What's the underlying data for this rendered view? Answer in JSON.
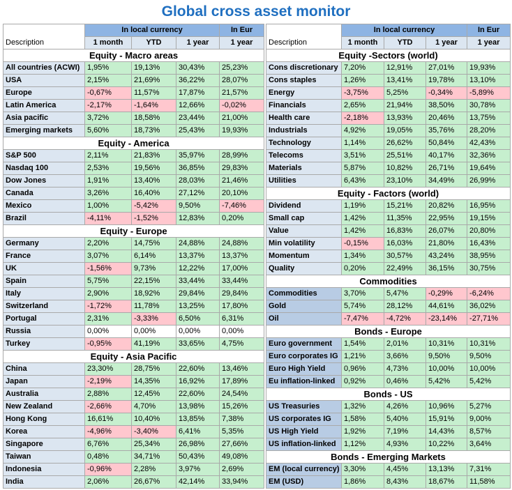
{
  "title": "Global cross asset monitor",
  "header": {
    "description": "Description",
    "local_currency": "In local currency",
    "in_eur": "In Eur",
    "col_1m": "1 month",
    "col_ytd": "YTD",
    "col_1y": "1 year",
    "col_1y_eur": "1 year"
  },
  "left_sections": [
    {
      "title": "Equity - Macro areas",
      "rows": [
        {
          "label": "All countries (ACWI)",
          "values": [
            "1,95%",
            "19,13%",
            "30,43%",
            "25,23%"
          ]
        },
        {
          "label": "USA",
          "values": [
            "2,15%",
            "21,69%",
            "36,22%",
            "28,07%"
          ]
        },
        {
          "label": "Europe",
          "values": [
            "-0,67%",
            "11,57%",
            "17,87%",
            "21,57%"
          ]
        },
        {
          "label": "Latin America",
          "values": [
            "-2,17%",
            "-1,64%",
            "12,66%",
            "-0,02%"
          ]
        },
        {
          "label": "Asia pacific",
          "values": [
            "3,72%",
            "18,58%",
            "23,44%",
            "21,00%"
          ]
        },
        {
          "label": "Emerging markets",
          "values": [
            "5,60%",
            "18,73%",
            "25,43%",
            "19,93%"
          ]
        }
      ]
    },
    {
      "title": "Equity - America",
      "rows": [
        {
          "label": "S&P 500",
          "values": [
            "2,11%",
            "21,83%",
            "35,97%",
            "28,99%"
          ]
        },
        {
          "label": "Nasdaq 100",
          "values": [
            "2,53%",
            "19,56%",
            "36,85%",
            "29,83%"
          ]
        },
        {
          "label": "Dow Jones",
          "values": [
            "1,91%",
            "13,40%",
            "28,03%",
            "21,46%"
          ]
        },
        {
          "label": "Canada",
          "values": [
            "3,26%",
            "16,40%",
            "27,12%",
            "20,10%"
          ]
        },
        {
          "label": "Mexico",
          "values": [
            "1,00%",
            "-5,42%",
            "9,50%",
            "-7,46%"
          ]
        },
        {
          "label": "Brazil",
          "values": [
            "-4,11%",
            "-1,52%",
            "12,83%",
            "0,20%"
          ]
        }
      ]
    },
    {
      "title": "Equity - Europe",
      "rows": [
        {
          "label": "Germany",
          "values": [
            "2,20%",
            "14,75%",
            "24,88%",
            "24,88%"
          ]
        },
        {
          "label": "France",
          "values": [
            "3,07%",
            "6,14%",
            "13,37%",
            "13,37%"
          ]
        },
        {
          "label": "UK",
          "values": [
            "-1,56%",
            "9,73%",
            "12,22%",
            "17,00%"
          ]
        },
        {
          "label": "Spain",
          "values": [
            "5,75%",
            "22,15%",
            "33,44%",
            "33,44%"
          ]
        },
        {
          "label": "Italy",
          "values": [
            "2,90%",
            "18,92%",
            "29,84%",
            "29,84%"
          ]
        },
        {
          "label": "Switzerland",
          "values": [
            "-1,72%",
            "11,78%",
            "13,25%",
            "17,80%"
          ]
        },
        {
          "label": "Portugal",
          "values": [
            "2,31%",
            "-3,33%",
            "6,50%",
            "6,31%"
          ]
        },
        {
          "label": "Russia",
          "values": [
            "0,00%",
            "0,00%",
            "0,00%",
            "0,00%"
          ]
        },
        {
          "label": "Turkey",
          "values": [
            "-0,95%",
            "41,19%",
            "33,65%",
            "4,75%"
          ]
        }
      ]
    },
    {
      "title": "Equity - Asia Pacific",
      "rows": [
        {
          "label": "China",
          "values": [
            "23,30%",
            "28,75%",
            "22,60%",
            "13,46%"
          ]
        },
        {
          "label": "Japan",
          "values": [
            "-2,19%",
            "14,35%",
            "16,92%",
            "17,89%"
          ]
        },
        {
          "label": "Australia",
          "values": [
            "2,88%",
            "12,45%",
            "22,60%",
            "24,54%"
          ]
        },
        {
          "label": "New Zealand",
          "values": [
            "-2,66%",
            "4,70%",
            "13,98%",
            "15,26%"
          ]
        },
        {
          "label": "Hong Kong",
          "values": [
            "16,61%",
            "10,40%",
            "13,85%",
            "7,38%"
          ]
        },
        {
          "label": "Korea",
          "values": [
            "-4,96%",
            "-3,40%",
            "6,41%",
            "5,35%"
          ]
        },
        {
          "label": "Singapore",
          "values": [
            "6,76%",
            "25,34%",
            "26,98%",
            "27,66%"
          ]
        },
        {
          "label": "Taiwan",
          "values": [
            "0,48%",
            "34,71%",
            "50,43%",
            "49,08%"
          ]
        },
        {
          "label": "Indonesia",
          "values": [
            "-0,96%",
            "2,28%",
            "3,97%",
            "2,69%"
          ]
        },
        {
          "label": "India",
          "values": [
            "2,06%",
            "26,67%",
            "42,14%",
            "33,94%"
          ]
        }
      ]
    }
  ],
  "right_sections": [
    {
      "title": "Equity -Sectors (world)",
      "rows": [
        {
          "label": "Cons discretionary",
          "values": [
            "7,20%",
            "12,91%",
            "27,01%",
            "19,93%"
          ]
        },
        {
          "label": "Cons staples",
          "values": [
            "1,26%",
            "13,41%",
            "19,78%",
            "13,10%"
          ]
        },
        {
          "label": "Energy",
          "values": [
            "-3,75%",
            "5,25%",
            "-0,34%",
            "-5,89%"
          ]
        },
        {
          "label": "Financials",
          "values": [
            "2,65%",
            "21,94%",
            "38,50%",
            "30,78%"
          ]
        },
        {
          "label": "Health care",
          "values": [
            "-2,18%",
            "13,93%",
            "20,46%",
            "13,75%"
          ]
        },
        {
          "label": "Industrials",
          "values": [
            "4,92%",
            "19,05%",
            "35,76%",
            "28,20%"
          ]
        },
        {
          "label": "Technology",
          "values": [
            "1,14%",
            "26,62%",
            "50,84%",
            "42,43%"
          ]
        },
        {
          "label": "Telecoms",
          "values": [
            "3,51%",
            "25,51%",
            "40,17%",
            "32,36%"
          ]
        },
        {
          "label": "Materials",
          "values": [
            "5,87%",
            "10,82%",
            "26,71%",
            "19,64%"
          ]
        },
        {
          "label": "Utilities",
          "values": [
            "6,43%",
            "23,10%",
            "34,49%",
            "26,99%"
          ]
        }
      ]
    },
    {
      "title": "Equity - Factors (world)",
      "rows": [
        {
          "label": "Dividend",
          "values": [
            "1,19%",
            "15,21%",
            "20,82%",
            "16,95%"
          ]
        },
        {
          "label": "Small cap",
          "values": [
            "1,42%",
            "11,35%",
            "22,95%",
            "19,15%"
          ]
        },
        {
          "label": "Value",
          "values": [
            "1,42%",
            "16,83%",
            "26,07%",
            "20,80%"
          ]
        },
        {
          "label": "Min volatility",
          "values": [
            "-0,15%",
            "16,03%",
            "21,80%",
            "16,43%"
          ]
        },
        {
          "label": "Momentum",
          "values": [
            "1,34%",
            "30,57%",
            "43,24%",
            "38,95%"
          ]
        },
        {
          "label": "Quality",
          "values": [
            "0,20%",
            "22,49%",
            "36,15%",
            "30,75%"
          ]
        }
      ]
    },
    {
      "title": "Commodities",
      "dark": true,
      "rows": [
        {
          "label": "Commodities",
          "values": [
            "3,70%",
            "5,47%",
            "-0,29%",
            "-6,24%"
          ]
        },
        {
          "label": "Gold",
          "values": [
            "5,74%",
            "28,12%",
            "44,61%",
            "36,02%"
          ]
        },
        {
          "label": "Oil",
          "values": [
            "-7,47%",
            "-4,72%",
            "-23,14%",
            "-27,71%"
          ]
        }
      ]
    },
    {
      "title": "Bonds - Europe",
      "dark": true,
      "rows": [
        {
          "label": "Euro government",
          "values": [
            "1,54%",
            "2,01%",
            "10,31%",
            "10,31%"
          ]
        },
        {
          "label": "Euro corporates IG",
          "values": [
            "1,21%",
            "3,66%",
            "9,50%",
            "9,50%"
          ]
        },
        {
          "label": "Euro High Yield",
          "values": [
            "0,96%",
            "4,73%",
            "10,00%",
            "10,00%"
          ]
        },
        {
          "label": "Eu inflation-linked",
          "values": [
            "0,92%",
            "0,46%",
            "5,42%",
            "5,42%"
          ]
        }
      ]
    },
    {
      "title": "Bonds - US",
      "dark": true,
      "rows": [
        {
          "label": "US Treasuries",
          "values": [
            "1,32%",
            "4,26%",
            "10,96%",
            "5,27%"
          ]
        },
        {
          "label": "US corporates IG",
          "values": [
            "1,58%",
            "5,40%",
            "15,91%",
            "9,00%"
          ]
        },
        {
          "label": "US High Yield",
          "values": [
            "1,92%",
            "7,19%",
            "14,43%",
            "8,57%"
          ]
        },
        {
          "label": "US inflation-linked",
          "values": [
            "1,12%",
            "4,93%",
            "10,22%",
            "3,64%"
          ]
        }
      ]
    },
    {
      "title": "Bonds - Emerging Markets",
      "dark": true,
      "rows": [
        {
          "label": "EM (local currency)",
          "values": [
            "3,30%",
            "4,45%",
            "13,13%",
            "7,31%"
          ]
        },
        {
          "label": "EM (USD)",
          "values": [
            "1,86%",
            "8,43%",
            "18,67%",
            "11,58%"
          ]
        }
      ]
    }
  ],
  "colors": {
    "title": "#1f6fc0",
    "header_dark": "#8eb4e3",
    "header_light": "#dce6f1",
    "positive": "#c6efce",
    "negative": "#ffc7ce",
    "zero": "#ffffff"
  }
}
